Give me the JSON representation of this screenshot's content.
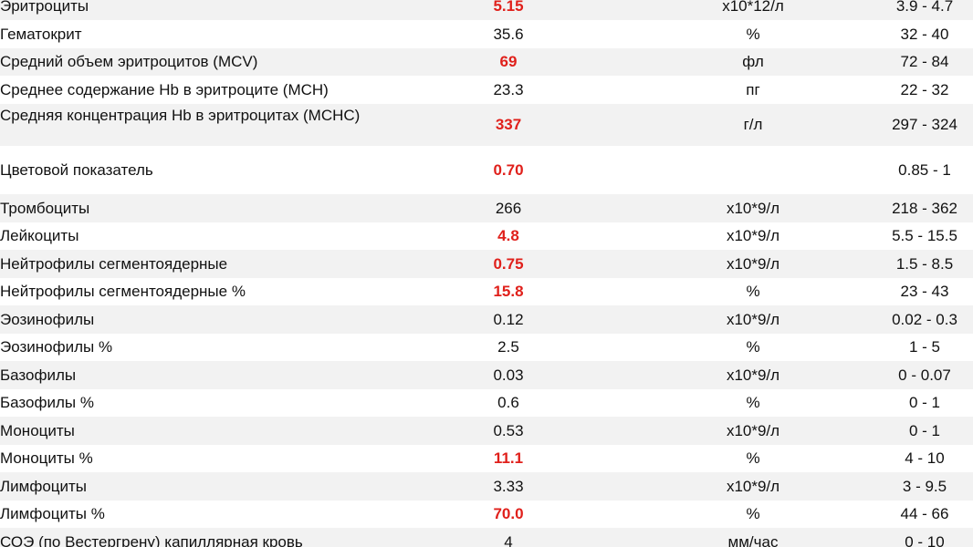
{
  "table": {
    "abnormal_color": "#e0201b",
    "rows": [
      {
        "name": "Эритроциты",
        "value": "5.15",
        "unit": "x10*12/л",
        "range": "3.9 - 4.7",
        "abnormal": true
      },
      {
        "name": "Гематокрит",
        "value": "35.6",
        "unit": "%",
        "range": "32 - 40",
        "abnormal": false
      },
      {
        "name": "Средний объем эритроцитов (MCV)",
        "value": "69",
        "unit": "фл",
        "range": "72 - 84",
        "abnormal": true
      },
      {
        "name": "Среднее содержание Hb в эритроците (MCH)",
        "value": "23.3",
        "unit": "пг",
        "range": "22 - 32",
        "abnormal": false
      },
      {
        "name": "Средняя концентрация Hb в эритроцитах (MCHC)",
        "value": "337",
        "unit": "г/л",
        "range": "297 - 324",
        "abnormal": true
      },
      {
        "name": "Цветовой показатель",
        "value": "0.70",
        "range": "0.85 - 1",
        "abnormal": true
      },
      {
        "name": "Тромбоциты",
        "value": "266",
        "unit": "x10*9/л",
        "range": "218 - 362",
        "abnormal": false
      },
      {
        "name": "Лейкоциты",
        "value": "4.8",
        "unit": "x10*9/л",
        "range": "5.5 - 15.5",
        "abnormal": true
      },
      {
        "name": "Нейтрофилы сегментоядерные",
        "value": "0.75",
        "unit": "x10*9/л",
        "range": "1.5 - 8.5",
        "abnormal": true
      },
      {
        "name": "Нейтрофилы сегментоядерные %",
        "value": "15.8",
        "unit": "%",
        "range": "23 - 43",
        "abnormal": true
      },
      {
        "name": "Эозинофилы",
        "value": "0.12",
        "unit": "x10*9/л",
        "range": "0.02 - 0.3",
        "abnormal": false
      },
      {
        "name": "Эозинофилы %",
        "value": "2.5",
        "unit": "%",
        "range": "1 - 5",
        "abnormal": false
      },
      {
        "name": "Базофилы",
        "value": "0.03",
        "unit": "x10*9/л",
        "range": "0 - 0.07",
        "abnormal": false
      },
      {
        "name": "Базофилы %",
        "value": "0.6",
        "unit": "%",
        "range": "0 - 1",
        "abnormal": false
      },
      {
        "name": "Моноциты",
        "value": "0.53",
        "unit": "x10*9/л",
        "range": "0 - 1",
        "abnormal": false
      },
      {
        "name": "Моноциты %",
        "value": "11.1",
        "unit": "%",
        "range": "4 - 10",
        "abnormal": true
      },
      {
        "name": "Лимфоциты",
        "value": "3.33",
        "unit": "x10*9/л",
        "range": "3 - 9.5",
        "abnormal": false
      },
      {
        "name": "Лимфоциты %",
        "value": "70.0",
        "unit": "%",
        "range": "44 - 66",
        "abnormal": true
      },
      {
        "name": "СОЭ (по Вестергрену) капиллярная кровь",
        "value": "4",
        "unit": "мм/час",
        "range": "0 - 10",
        "abnormal": false
      }
    ]
  }
}
